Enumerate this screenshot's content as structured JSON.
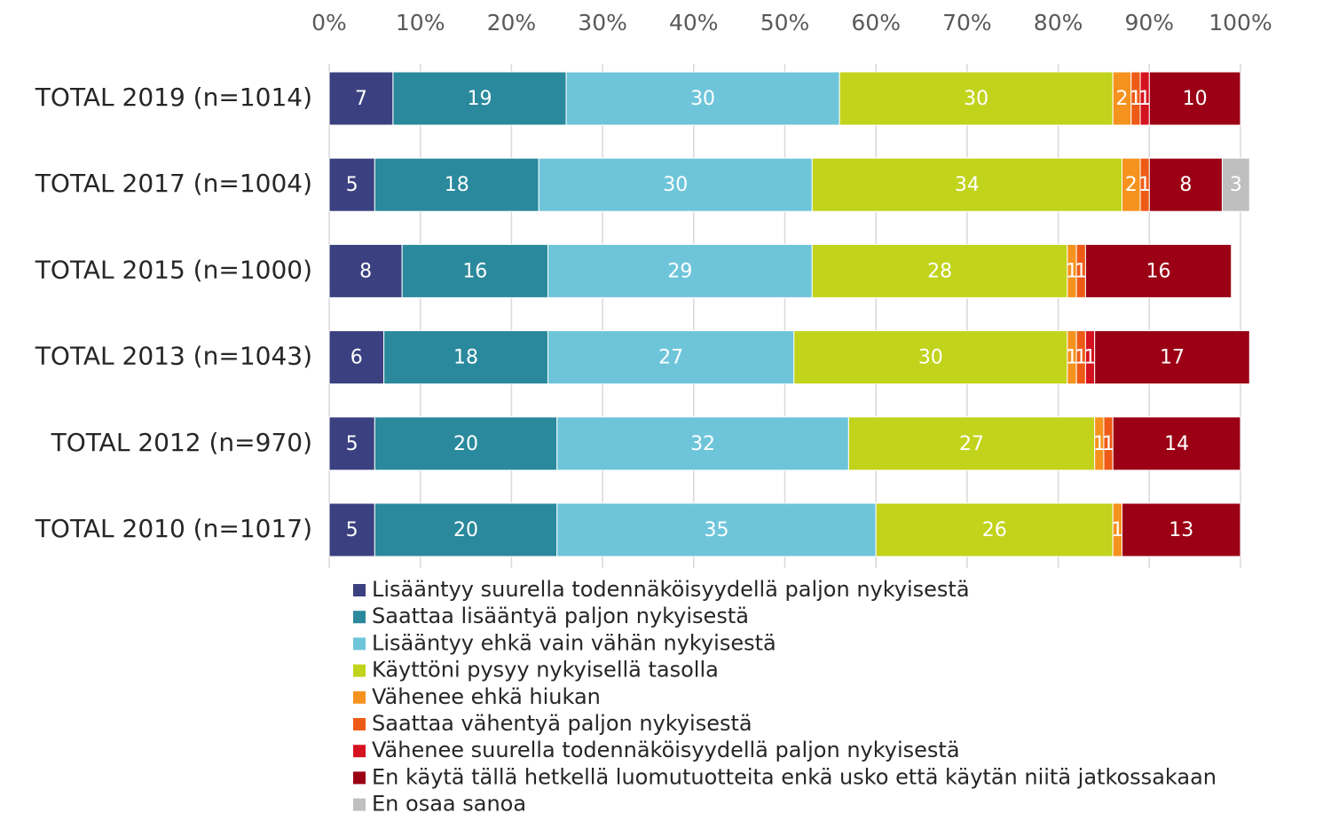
{
  "chart_data": {
    "type": "stacked-barh",
    "categories": [
      "TOTAL 2019 (n=1014)",
      "TOTAL 2017 (n=1004)",
      "TOTAL 2015 (n=1000)",
      "TOTAL 2013 (n=1043)",
      "TOTAL 2012 (n=970)",
      "TOTAL 2010 (n=1017)"
    ],
    "xlim": [
      0,
      100
    ],
    "xticks": [
      {
        "value": 0,
        "label": "0%"
      },
      {
        "value": 10,
        "label": "10%"
      },
      {
        "value": 20,
        "label": "20%"
      },
      {
        "value": 30,
        "label": "30%"
      },
      {
        "value": 40,
        "label": "40%"
      },
      {
        "value": 50,
        "label": "50%"
      },
      {
        "value": 60,
        "label": "60%"
      },
      {
        "value": 70,
        "label": "70%"
      },
      {
        "value": 80,
        "label": "80%"
      },
      {
        "value": 90,
        "label": "90%"
      },
      {
        "value": 100,
        "label": "100%"
      }
    ],
    "grid": true,
    "series": [
      {
        "name": "Lisääntyy suurella todennäköisyydellä paljon nykyisestä",
        "color": "#3b4180",
        "values": [
          7,
          5,
          8,
          6,
          5,
          5
        ]
      },
      {
        "name": "Saattaa lisääntyä paljon nykyisestä",
        "color": "#2a899d",
        "values": [
          19,
          18,
          16,
          18,
          20,
          20
        ]
      },
      {
        "name": "Lisääntyy ehkä vain vähän nykyisestä",
        "color": "#6ec5da",
        "values": [
          30,
          30,
          29,
          27,
          32,
          35
        ]
      },
      {
        "name": "Käyttöni pysyy nykyisellä tasolla",
        "color": "#c1d31b",
        "values": [
          30,
          34,
          28,
          30,
          27,
          26
        ]
      },
      {
        "name": "Vähenee ehkä hiukan",
        "color": "#f6921e",
        "values": [
          2,
          2,
          1,
          1,
          1,
          1
        ]
      },
      {
        "name": "Saattaa vähentyä paljon nykyisestä",
        "color": "#ee5b16",
        "values": [
          1,
          1,
          1,
          1,
          1,
          null
        ]
      },
      {
        "name": "Vähenee suurella todennäköisyydellä paljon nykyisestä",
        "color": "#d5121f",
        "values": [
          1,
          null,
          null,
          1,
          null,
          null
        ]
      },
      {
        "name": "En käytä tällä hetkellä luomutuotteita enkä usko että käytän niitä jatkossakaan",
        "color": "#9b0014",
        "values": [
          10,
          8,
          16,
          17,
          14,
          13
        ]
      },
      {
        "name": "En osaa sanoa",
        "color": "#bfbfbf",
        "values": [
          null,
          3,
          null,
          null,
          null,
          null
        ]
      }
    ]
  }
}
